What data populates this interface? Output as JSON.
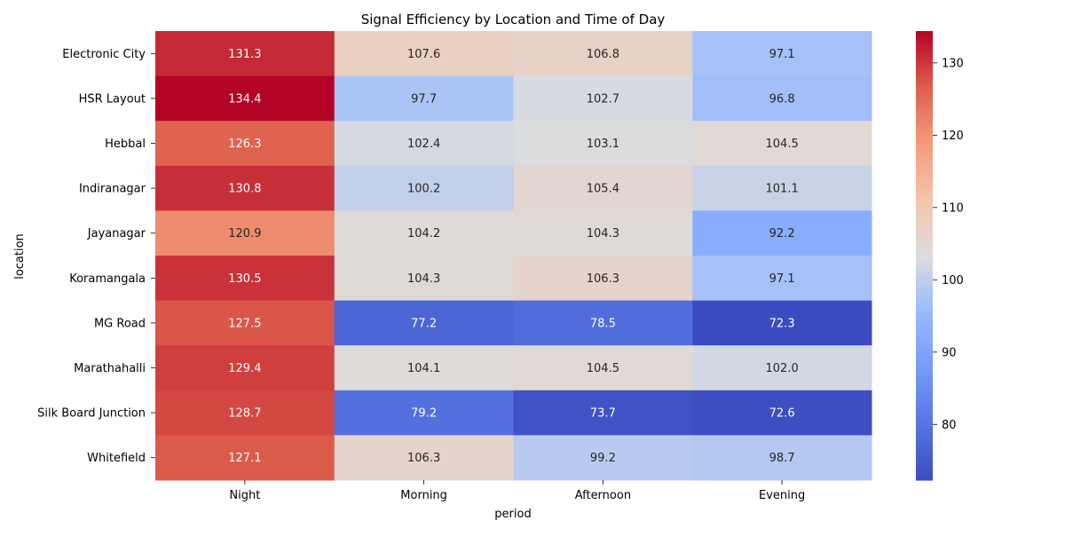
{
  "chart_data": {
    "type": "heatmap",
    "title": "Signal Efficiency by Location and Time of Day",
    "xlabel": "period",
    "ylabel": "location",
    "x_categories": [
      "Night",
      "Morning",
      "Afternoon",
      "Evening"
    ],
    "y_categories": [
      "Electronic City",
      "HSR Layout",
      "Hebbal",
      "Indiranagar",
      "Jayanagar",
      "Koramangala",
      "MG Road",
      "Marathahalli",
      "Silk Board Junction",
      "Whitefield"
    ],
    "values": [
      [
        131.3,
        107.6,
        106.8,
        97.1
      ],
      [
        134.4,
        97.7,
        102.7,
        96.8
      ],
      [
        126.3,
        102.4,
        103.1,
        104.5
      ],
      [
        130.8,
        100.2,
        105.4,
        101.1
      ],
      [
        120.9,
        104.2,
        104.3,
        92.2
      ],
      [
        130.5,
        104.3,
        106.3,
        97.1
      ],
      [
        127.5,
        77.2,
        78.5,
        72.3
      ],
      [
        129.4,
        104.1,
        104.5,
        102.0
      ],
      [
        128.7,
        79.2,
        73.7,
        72.6
      ],
      [
        127.1,
        106.3,
        99.2,
        98.7
      ]
    ],
    "colormap": "coolwarm",
    "vmin": 72.3,
    "vmax": 134.4,
    "colorbar_ticks": [
      80,
      90,
      100,
      110,
      120,
      130
    ],
    "annotations": true,
    "value_format": "0.1f"
  }
}
